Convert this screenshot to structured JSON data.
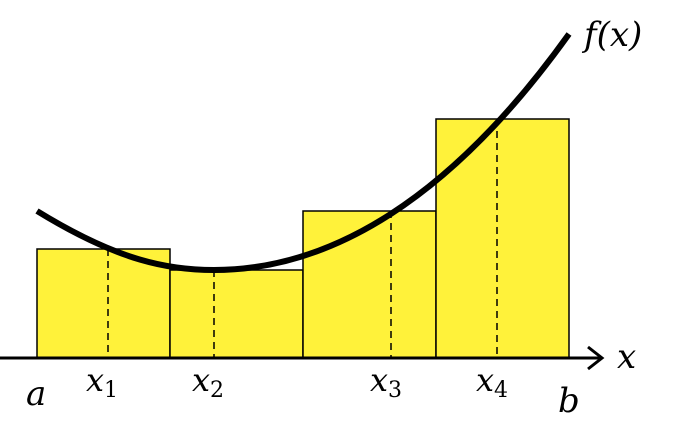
{
  "diagram": {
    "function_label": "f(x)",
    "axis_label": "x",
    "interval": {
      "start_label": "a",
      "end_label": "b"
    },
    "colors": {
      "rect_fill": "#fff23a",
      "stroke": "#000000",
      "background": "#ffffff"
    },
    "sample_points": [
      {
        "var": "x",
        "sub": "1"
      },
      {
        "var": "x",
        "sub": "2"
      },
      {
        "var": "x",
        "sub": "3"
      },
      {
        "var": "x",
        "sub": "4"
      }
    ]
  }
}
